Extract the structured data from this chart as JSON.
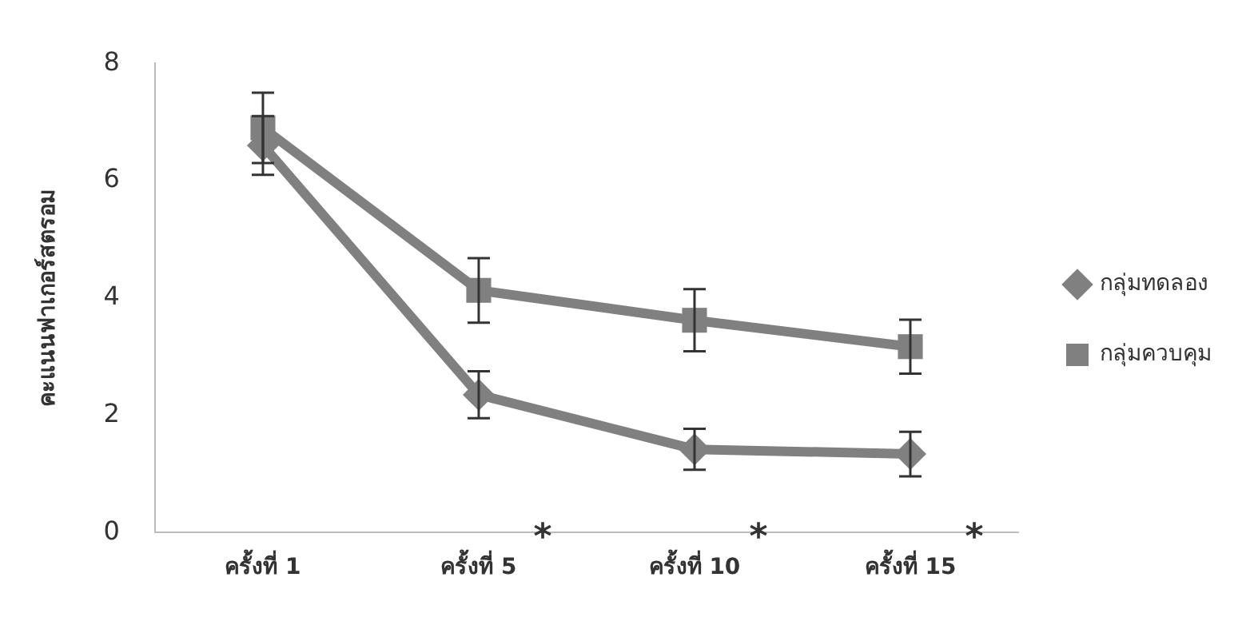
{
  "chart_data": {
    "type": "line",
    "ylabel": "คะแนนฟาเกอร์สตรอม",
    "categories": [
      "ครั้งที่ 1",
      "ครั้งที่ 5",
      "ครั้งที่ 10",
      "ครั้งที่ 15"
    ],
    "series": [
      {
        "name": "กลุ่มทดลอง",
        "color": "#808080",
        "marker": "diamond",
        "values": [
          6.6,
          2.35,
          1.42,
          1.34
        ],
        "errors": [
          0.5,
          0.4,
          0.35,
          0.38
        ]
      },
      {
        "name": "กลุ่มควบคุม",
        "color": "#808080",
        "marker": "square",
        "values": [
          6.9,
          4.13,
          3.62,
          3.17
        ],
        "errors": [
          0.6,
          0.55,
          0.53,
          0.46
        ]
      }
    ],
    "ylim": [
      0,
      8
    ],
    "yticks": [
      0,
      2,
      4,
      6,
      8
    ],
    "grid": false,
    "legend": "right",
    "line_style": "solid",
    "annotations": [
      "*",
      "*",
      "*"
    ]
  }
}
